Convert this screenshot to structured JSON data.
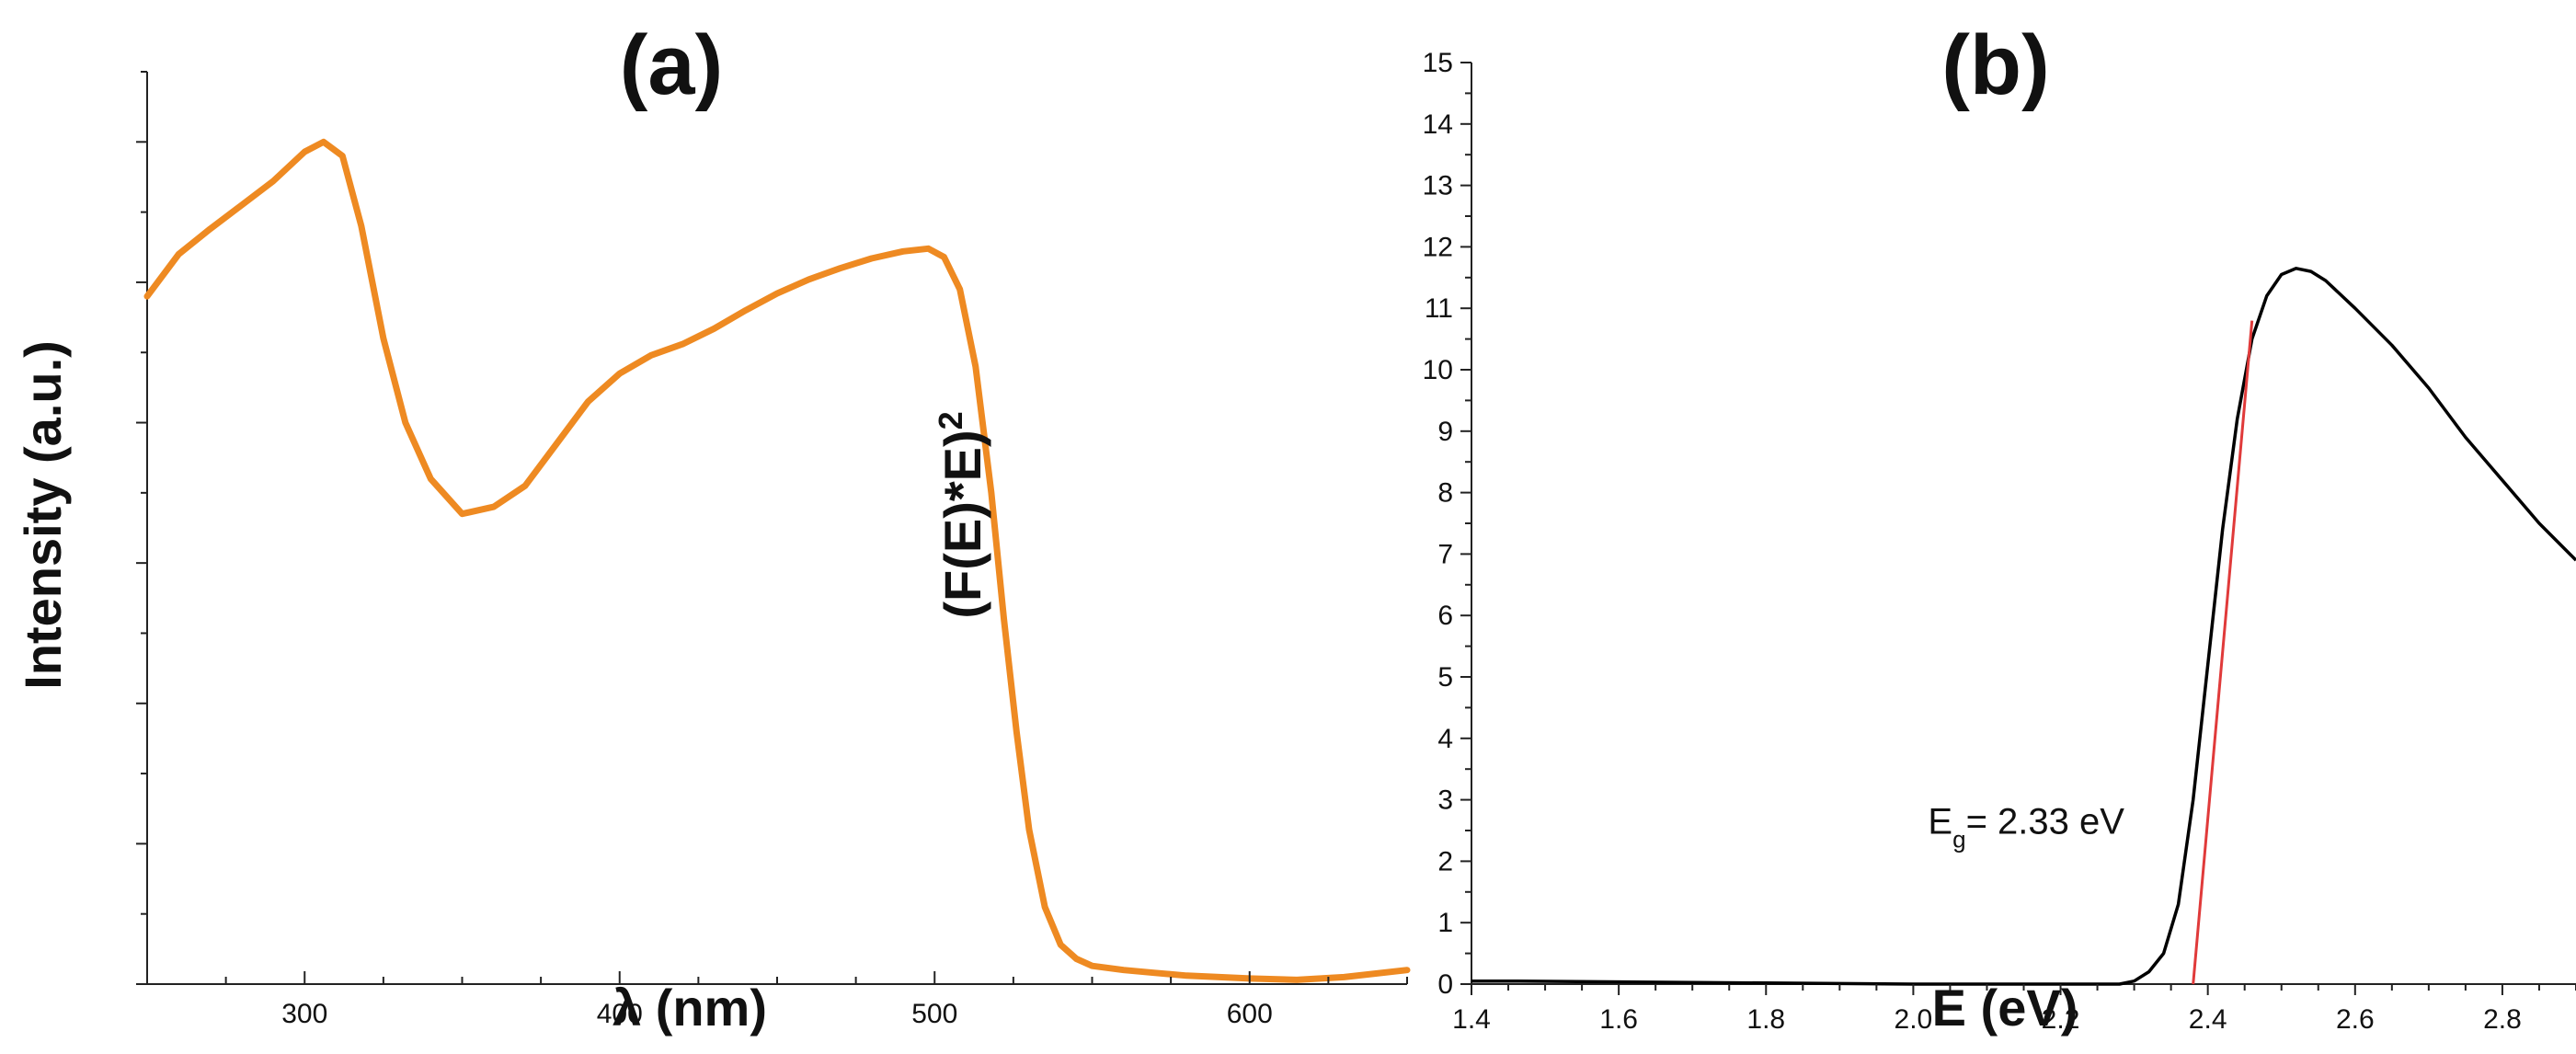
{
  "chart_data": [
    {
      "type": "line",
      "title": "(a)",
      "xlabel": "λ (nm)",
      "ylabel": "Intensity (a.u.)",
      "xlim": [
        250,
        650
      ],
      "ylim": [
        0,
        6.5
      ],
      "xticks": [
        300,
        400,
        500,
        600
      ],
      "y_tick_labels_shown": false,
      "grid": false,
      "series": [
        {
          "color": "#ee8a22",
          "x": [
            250,
            260,
            270,
            280,
            290,
            300,
            306,
            312,
            318,
            325,
            332,
            340,
            350,
            360,
            370,
            380,
            390,
            400,
            410,
            420,
            430,
            440,
            450,
            460,
            470,
            480,
            490,
            498,
            503,
            508,
            513,
            518,
            522,
            526,
            530,
            535,
            540,
            545,
            550,
            560,
            570,
            580,
            600,
            615,
            630,
            650
          ],
          "y": [
            4.9,
            5.2,
            5.38,
            5.55,
            5.72,
            5.93,
            6.0,
            5.9,
            5.4,
            4.6,
            4.0,
            3.6,
            3.35,
            3.4,
            3.55,
            3.85,
            4.15,
            4.35,
            4.48,
            4.56,
            4.67,
            4.8,
            4.92,
            5.02,
            5.1,
            5.17,
            5.22,
            5.24,
            5.18,
            4.95,
            4.4,
            3.5,
            2.6,
            1.8,
            1.1,
            0.55,
            0.28,
            0.18,
            0.13,
            0.1,
            0.08,
            0.06,
            0.04,
            0.03,
            0.05,
            0.1
          ]
        }
      ]
    },
    {
      "type": "line",
      "title": "(b)",
      "xlabel": "E (eV)",
      "ylabel": "(F(E)*E)",
      "ylabel_superscript": "2",
      "xlim": [
        1.4,
        2.9
      ],
      "ylim": [
        0,
        15
      ],
      "xticks": [
        "1.4",
        "1.6",
        "1.8",
        "2.0",
        "2.2",
        "2.4",
        "2.6",
        "2.8"
      ],
      "yticks": [
        "0",
        "1",
        "2",
        "3",
        "4",
        "5",
        "6",
        "7",
        "8",
        "9",
        "10",
        "11",
        "12",
        "13",
        "14",
        "15"
      ],
      "grid": false,
      "annotation": {
        "text": "E",
        "subscript": "g",
        "rest": "= 2.33 eV",
        "x": 2.02,
        "y": 2.45
      },
      "series": [
        {
          "color": "#000000",
          "x": [
            1.4,
            1.45,
            2.0,
            2.28,
            2.3,
            2.32,
            2.34,
            2.36,
            2.38,
            2.4,
            2.42,
            2.44,
            2.46,
            2.48,
            2.5,
            2.52,
            2.54,
            2.56,
            2.6,
            2.65,
            2.7,
            2.75,
            2.8,
            2.85,
            2.9
          ],
          "y": [
            0.05,
            0.05,
            0.0,
            0.0,
            0.05,
            0.2,
            0.5,
            1.3,
            3.0,
            5.2,
            7.4,
            9.2,
            10.5,
            11.2,
            11.55,
            11.65,
            11.6,
            11.45,
            11.0,
            10.4,
            9.7,
            8.9,
            8.2,
            7.5,
            6.9
          ]
        },
        {
          "color": "#e03a3a",
          "x": [
            2.38,
            2.46
          ],
          "y": [
            0.0,
            10.8
          ]
        }
      ]
    }
  ]
}
